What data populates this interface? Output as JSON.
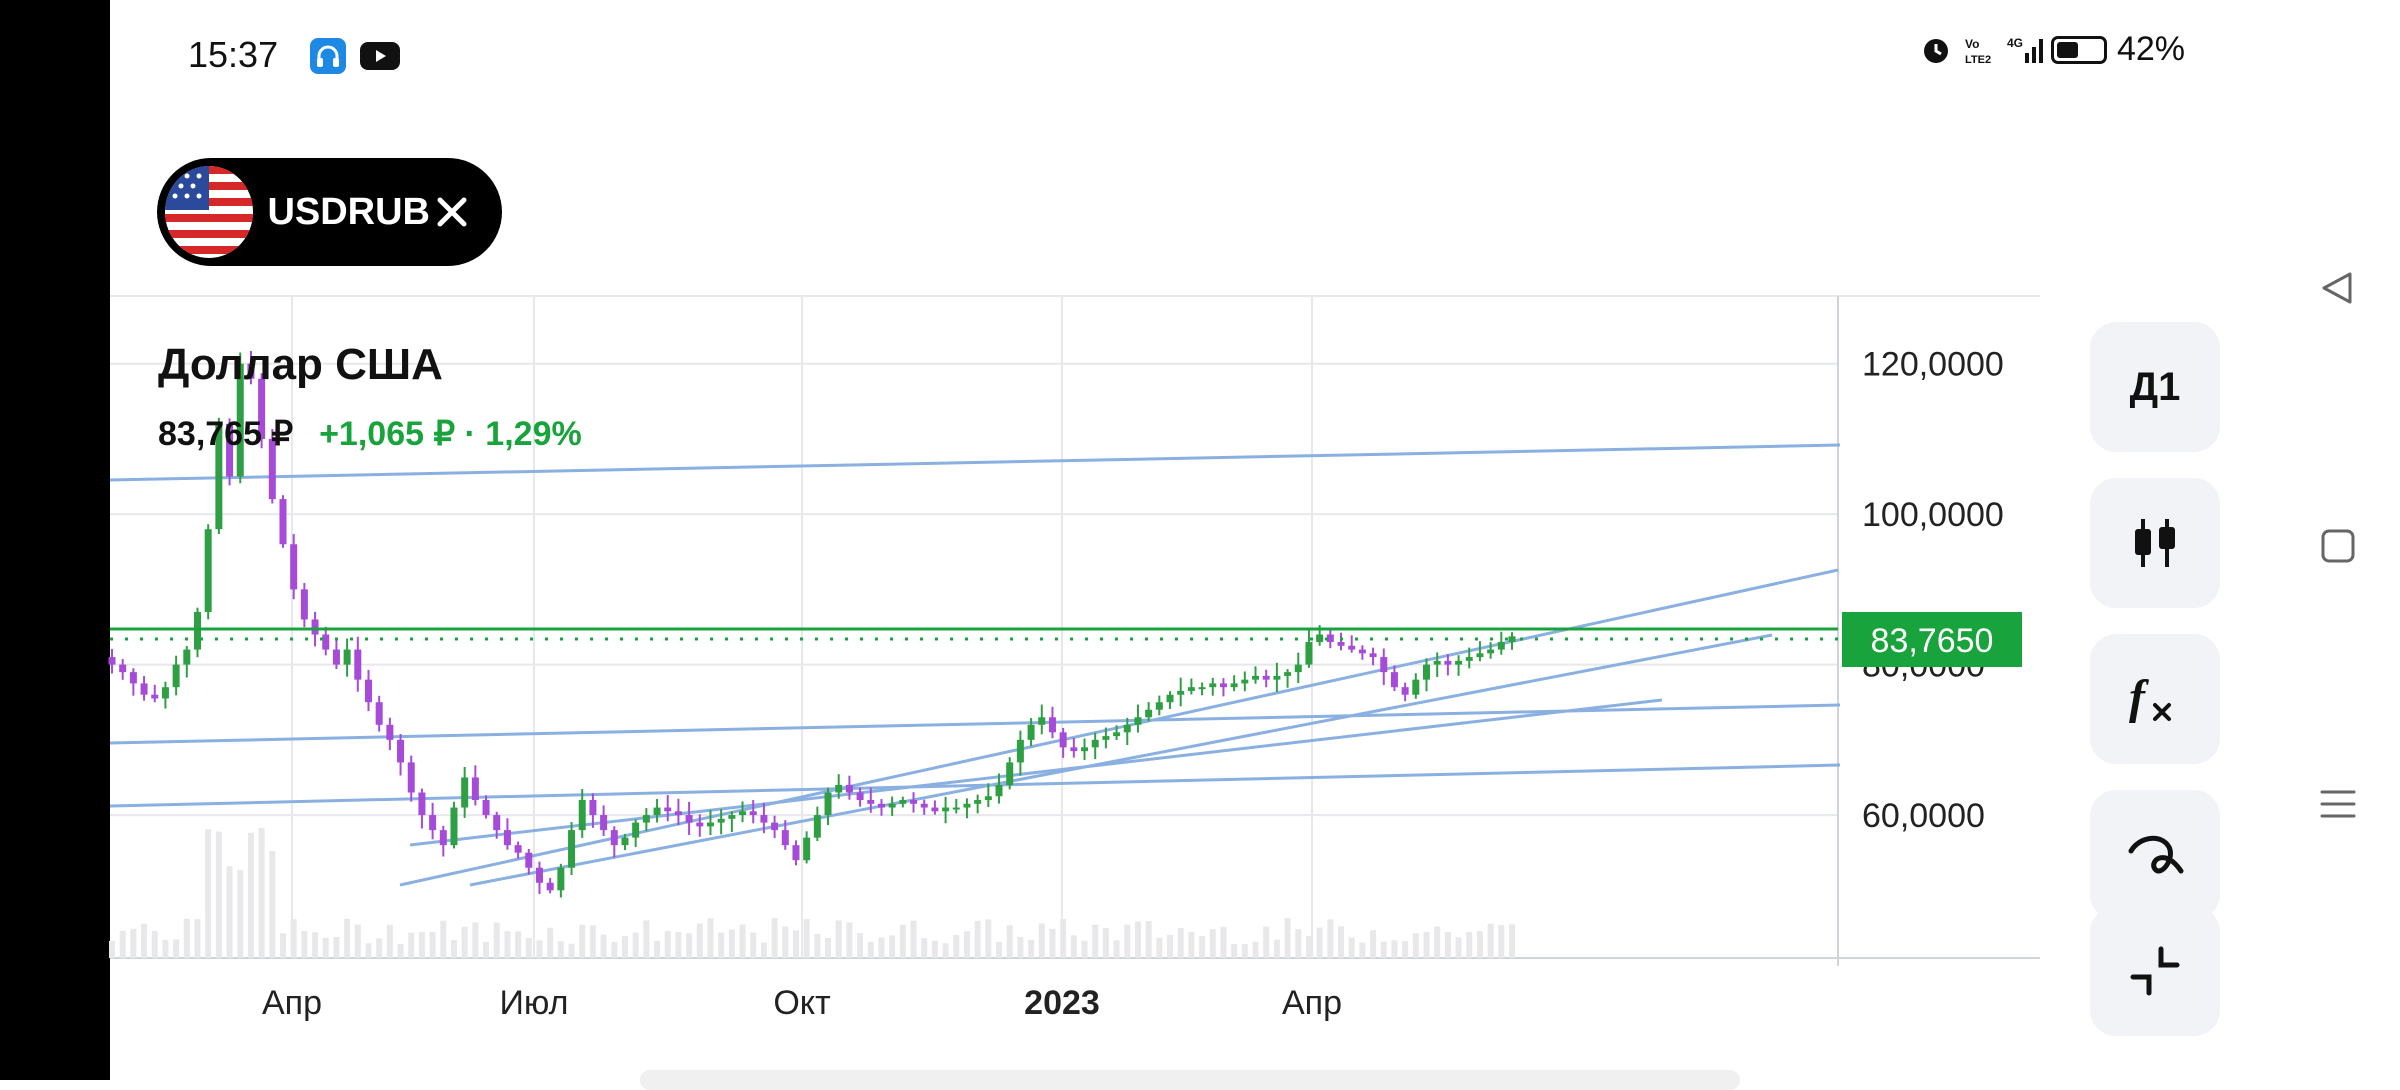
{
  "status_bar": {
    "time": "15:37",
    "battery": "42%"
  },
  "symbol_pill": {
    "label": "USDRUB"
  },
  "chart_header": {
    "title": "Доллар США",
    "price": "83,765 ₽",
    "change": "+1,065 ₽ · 1,29%"
  },
  "side_buttons": {
    "timeframe": "Д1"
  },
  "colors": {
    "accent_green": "#19a33c",
    "trend_blue": "#8ab0e2",
    "candle_up": "#2ea043",
    "candle_down": "#a64ad8",
    "grid": "#e6e8ec"
  },
  "chart_data": {
    "type": "candlestick",
    "title": "Доллар США",
    "y_tick_labels": [
      "120,0000",
      "100,0000",
      "80,0000",
      "60,0000"
    ],
    "y_ticks": [
      120,
      100,
      80,
      60
    ],
    "ylim": [
      41,
      129
    ],
    "x_tick_labels": [
      "Апр",
      "Июл",
      "Окт",
      "2023",
      "Апр"
    ],
    "x_tick_bold": [
      false,
      false,
      false,
      true,
      false
    ],
    "current_price_label": "83,7650",
    "current_price": 83.765,
    "close_series": [
      80.0,
      79.0,
      77.5,
      76.0,
      75.5,
      77.0,
      80.0,
      82.0,
      87.0,
      98.0,
      112.0,
      105.0,
      120.0,
      118.0,
      110.0,
      102.0,
      96.0,
      90.0,
      86.0,
      84.0,
      82.0,
      80.0,
      82.0,
      78.0,
      75.0,
      72.0,
      70.0,
      67.0,
      63.0,
      60.0,
      58.0,
      56.0,
      61.0,
      65.0,
      62.0,
      60.0,
      58.0,
      56.0,
      55.0,
      53.0,
      51.0,
      50.0,
      53.0,
      58.0,
      62.0,
      60.0,
      58.0,
      56.0,
      57.0,
      59.0,
      60.0,
      61.0,
      60.5,
      60.0,
      59.0,
      58.5,
      59.0,
      59.5,
      60.0,
      60.5,
      60.0,
      59.0,
      58.0,
      56.0,
      54.0,
      57.0,
      60.0,
      63.0,
      64.0,
      63.0,
      62.0,
      61.5,
      61.0,
      61.5,
      62.0,
      61.5,
      61.0,
      60.5,
      61.0,
      61.0,
      61.5,
      62.0,
      62.5,
      64.0,
      67.0,
      70.0,
      72.0,
      73.0,
      71.0,
      69.0,
      68.5,
      69.0,
      70.0,
      70.5,
      71.0,
      72.0,
      73.0,
      74.0,
      75.0,
      76.0,
      76.5,
      77.0,
      77.0,
      77.5,
      77.0,
      77.5,
      78.0,
      78.5,
      78.0,
      78.5,
      79.0,
      80.0,
      83.0,
      84.0,
      83.0,
      82.5,
      82.0,
      81.5,
      81.0,
      79.0,
      77.0,
      76.0,
      78.0,
      80.0,
      80.5,
      80.0,
      80.5,
      81.0,
      81.5,
      82.0,
      83.0,
      83.765
    ]
  }
}
